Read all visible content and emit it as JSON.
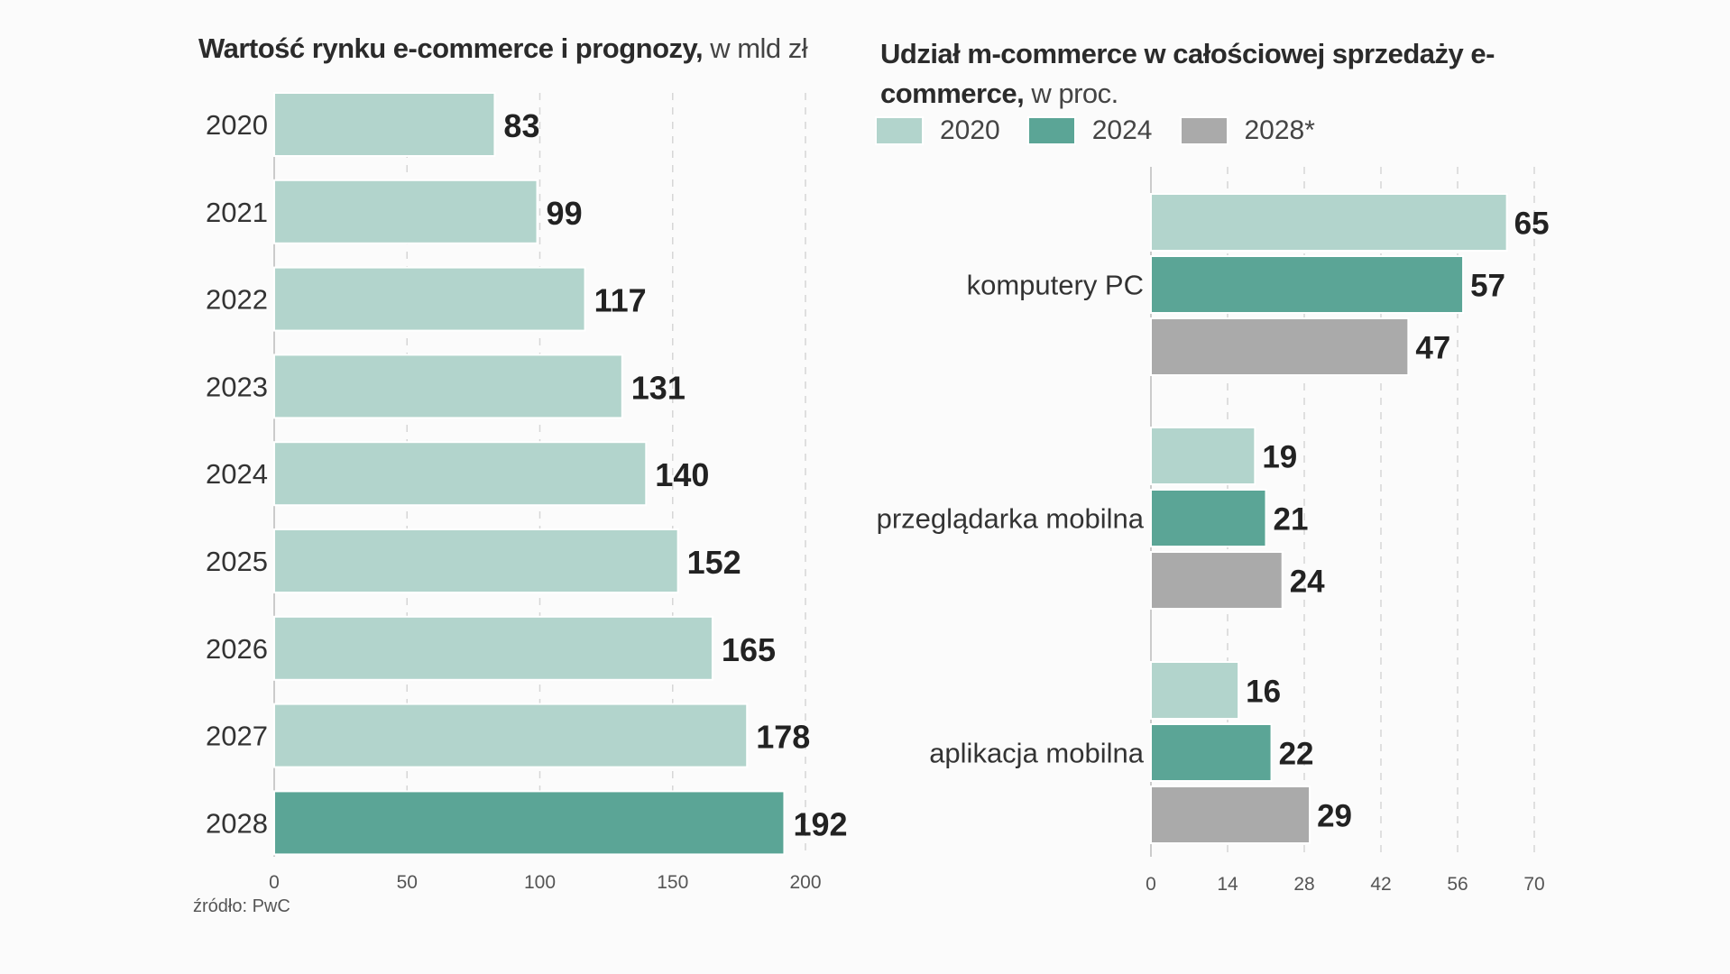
{
  "chart_data": [
    {
      "type": "bar",
      "orientation": "horizontal",
      "title": "Wartość rynku e-commerce i prognozy,",
      "subtitle": "w mld zł",
      "categories": [
        "2020",
        "2021",
        "2022",
        "2023",
        "2024",
        "2025",
        "2026",
        "2027",
        "2028"
      ],
      "values": [
        83,
        99,
        117,
        131,
        140,
        152,
        165,
        178,
        192
      ],
      "highlight_category": "2028",
      "xlim": [
        0,
        200
      ],
      "xticks": [
        0,
        50,
        100,
        150,
        200
      ],
      "grid": "vertical dashed",
      "colors": {
        "bar": "#b2d4cc",
        "highlight": "#5ba596"
      }
    },
    {
      "type": "bar",
      "orientation": "horizontal",
      "title": "Udział m-commerce w całościowej sprzedaży e-commerce,",
      "subtitle": "w proc.",
      "categories": [
        "komputery PC",
        "przeglądarka mobilna",
        "aplikacja mobilna"
      ],
      "series": [
        {
          "name": "2020",
          "values": [
            65,
            19,
            16
          ],
          "color": "#b2d4cc"
        },
        {
          "name": "2024",
          "values": [
            57,
            21,
            22
          ],
          "color": "#5ba596"
        },
        {
          "name": "2028*",
          "values": [
            47,
            24,
            29
          ],
          "color": "#aaaaaa"
        }
      ],
      "xlim": [
        0,
        70
      ],
      "xticks": [
        0,
        14,
        28,
        42,
        56,
        70
      ],
      "legend": "top",
      "grid": "vertical dashed"
    }
  ],
  "source": "źródło: PwC"
}
